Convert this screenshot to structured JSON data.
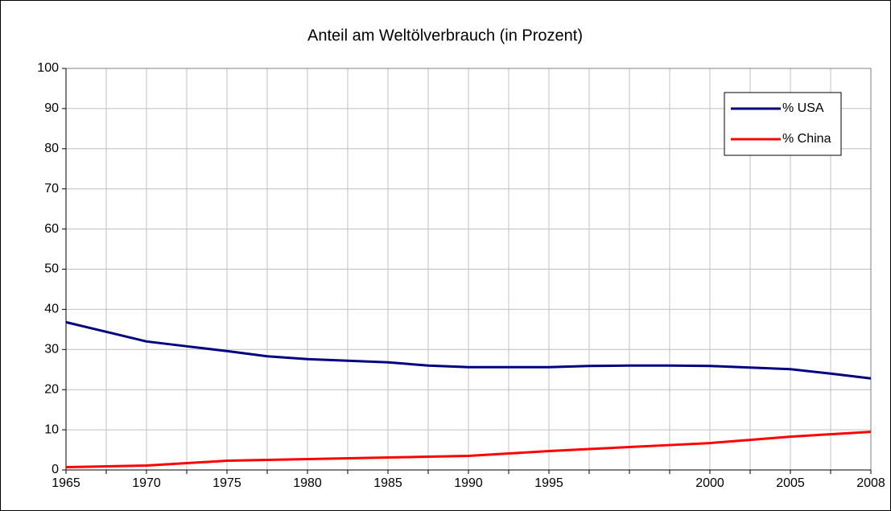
{
  "chart_data": {
    "type": "line",
    "title": "Anteil am Weltölverbrauch (in Prozent)",
    "categories": [
      "1965",
      null,
      "1970",
      null,
      "1975",
      null,
      "1980",
      null,
      "1985",
      null,
      "1990",
      null,
      "1995",
      null,
      null,
      null,
      "2000",
      null,
      "2005",
      null,
      "2008"
    ],
    "series": [
      {
        "name": "% USA",
        "color": "#000080",
        "values": [
          36.8,
          34.4,
          32,
          30.8,
          29.6,
          28.3,
          27.6,
          27.2,
          26.8,
          26,
          25.6,
          25.6,
          25.6,
          25.9,
          26,
          26,
          25.9,
          25.5,
          25.1,
          24,
          22.8
        ]
      },
      {
        "name": "% China",
        "color": "#ff0000",
        "values": [
          0.7,
          0.9,
          1.1,
          1.7,
          2.3,
          2.5,
          2.7,
          2.9,
          3.1,
          3.3,
          3.5,
          4.1,
          4.7,
          5.2,
          5.7,
          6.2,
          6.7,
          7.5,
          8.3,
          8.9,
          9.5
        ]
      }
    ],
    "ylim": [
      0,
      100
    ],
    "yticks": [
      0,
      10,
      20,
      30,
      40,
      50,
      60,
      70,
      80,
      90,
      100
    ],
    "grid": true,
    "legend": "upper right"
  }
}
